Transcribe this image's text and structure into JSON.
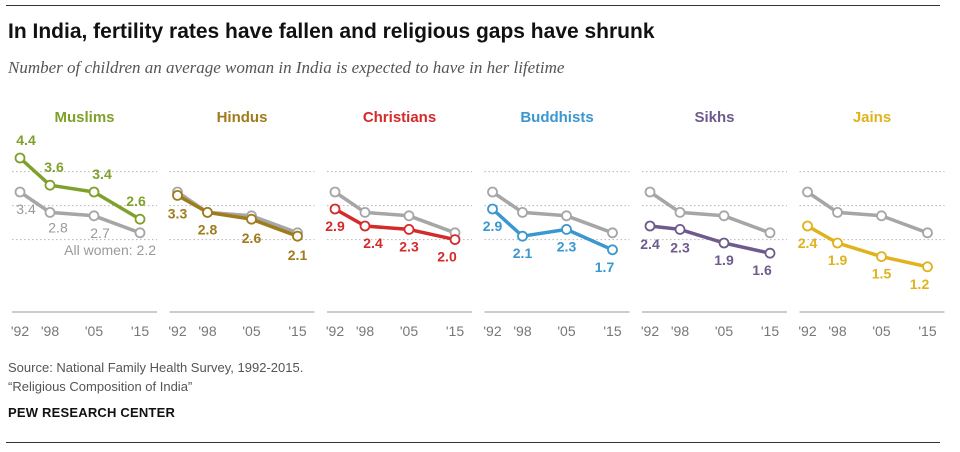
{
  "header": {
    "title": "In India, fertility rates have fallen and religious gaps have shrunk",
    "subtitle": "Number of children an average woman in India is expected to have in her lifetime"
  },
  "footer": {
    "source_line1": "Source: National Family Health Survey, 1992-2015.",
    "source_line2": "“Religious Composition of India”",
    "brand": "PEW RESEARCH CENTER"
  },
  "chart_data": {
    "type": "line",
    "x": [
      "'92",
      "'98",
      "'05",
      "'15"
    ],
    "ylim": [
      1.0,
      4.6
    ],
    "gridlines": [
      2.0,
      3.0,
      4.0
    ],
    "reference": {
      "name": "All women",
      "label": "All women: 2.2",
      "values": [
        3.4,
        2.8,
        2.7,
        2.2
      ],
      "value_labels": [
        "3.4",
        "2.8",
        "2.7",
        ""
      ],
      "color": "#a6a6a6"
    },
    "panels": [
      {
        "name": "Muslims",
        "color": "#7fa12b",
        "values": [
          4.4,
          3.6,
          3.4,
          2.6
        ],
        "labels": [
          "4.4",
          "3.6",
          "3.4",
          "2.6"
        ]
      },
      {
        "name": "Hindus",
        "color": "#a07b1c",
        "values": [
          3.3,
          2.8,
          2.6,
          2.1
        ],
        "labels": [
          "3.3",
          "2.8",
          "2.6",
          "2.1"
        ]
      },
      {
        "name": "Christians",
        "color": "#d42a2a",
        "values": [
          2.9,
          2.4,
          2.3,
          2.0
        ],
        "labels": [
          "2.9",
          "2.4",
          "2.3",
          "2.0"
        ]
      },
      {
        "name": "Buddhists",
        "color": "#3a97cf",
        "values": [
          2.9,
          2.1,
          2.3,
          1.7
        ],
        "labels": [
          "2.9",
          "2.1",
          "2.3",
          "1.7"
        ]
      },
      {
        "name": "Sikhs",
        "color": "#6e5b8c",
        "values": [
          2.4,
          2.3,
          1.9,
          1.6
        ],
        "labels": [
          "2.4",
          "2.3",
          "1.9",
          "1.6"
        ]
      },
      {
        "name": "Jains",
        "color": "#e0b21c",
        "values": [
          2.4,
          1.9,
          1.5,
          1.2
        ],
        "labels": [
          "2.4",
          "1.9",
          "1.5",
          "1.2"
        ]
      }
    ]
  }
}
